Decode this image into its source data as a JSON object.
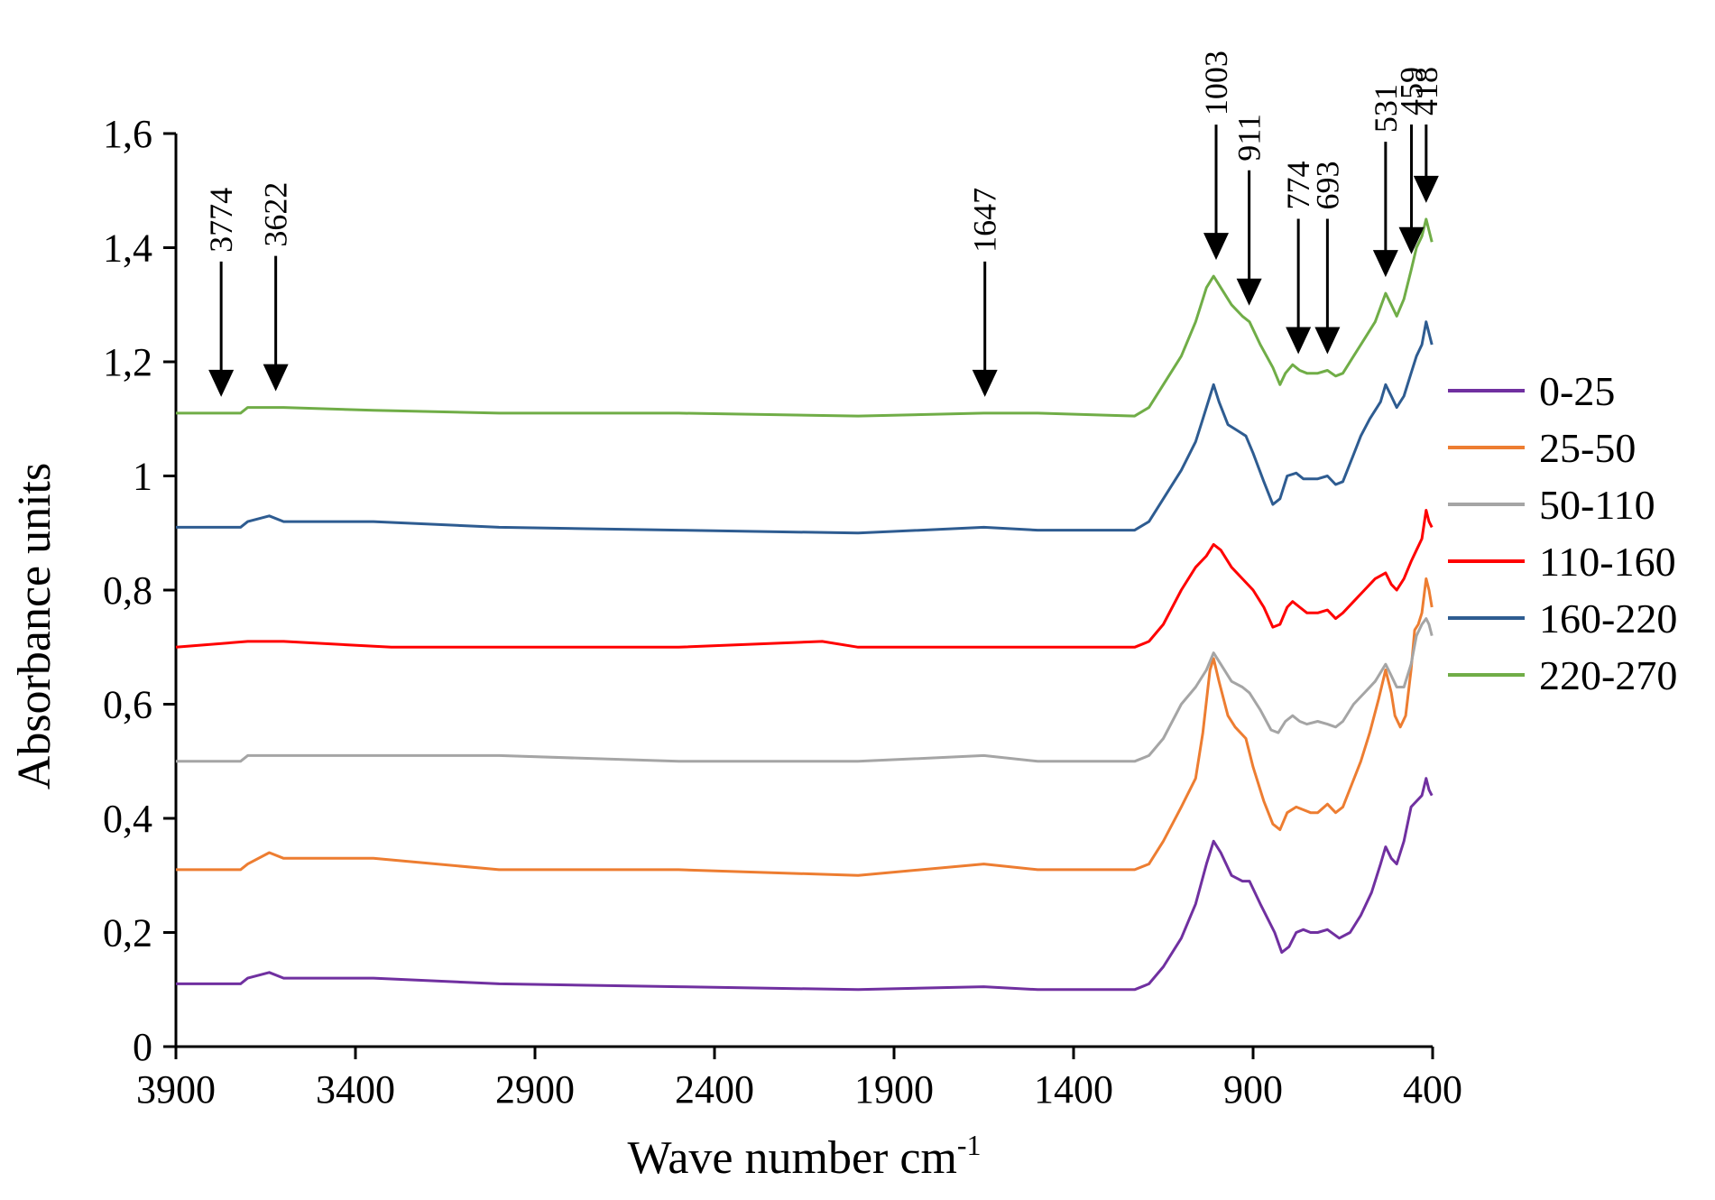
{
  "chart_data": {
    "type": "line",
    "title": "",
    "xlabel": "Wave number cm",
    "xlabel_sup": "-1",
    "ylabel": "Absorbance units",
    "xlim": [
      3900,
      400
    ],
    "ylim": [
      0,
      1.6
    ],
    "x_ticks": [
      3900,
      3400,
      2900,
      2400,
      1900,
      1400,
      900,
      400
    ],
    "x_tick_labels": [
      "3900",
      "3400",
      "2900",
      "2400",
      "1900",
      "1400",
      "900",
      "400"
    ],
    "y_ticks": [
      0,
      0.2,
      0.4,
      0.6,
      0.8,
      1.0,
      1.2,
      1.4,
      1.6
    ],
    "y_tick_labels": [
      "0",
      "0,2",
      "0,4",
      "0,6",
      "0,8",
      "1",
      "1,2",
      "1,4",
      "1,6"
    ],
    "grid": false,
    "legend_position": "right",
    "series": [
      {
        "name": "0-25",
        "color": "#7030A0",
        "points": [
          [
            3900,
            0.11
          ],
          [
            3720,
            0.11
          ],
          [
            3700,
            0.12
          ],
          [
            3640,
            0.13
          ],
          [
            3600,
            0.12
          ],
          [
            3350,
            0.12
          ],
          [
            3000,
            0.11
          ],
          [
            2500,
            0.105
          ],
          [
            2000,
            0.1
          ],
          [
            1650,
            0.105
          ],
          [
            1500,
            0.1
          ],
          [
            1230,
            0.1
          ],
          [
            1190,
            0.11
          ],
          [
            1150,
            0.14
          ],
          [
            1100,
            0.19
          ],
          [
            1060,
            0.25
          ],
          [
            1030,
            0.32
          ],
          [
            1010,
            0.36
          ],
          [
            990,
            0.34
          ],
          [
            960,
            0.3
          ],
          [
            930,
            0.29
          ],
          [
            910,
            0.29
          ],
          [
            880,
            0.25
          ],
          [
            840,
            0.2
          ],
          [
            820,
            0.165
          ],
          [
            800,
            0.175
          ],
          [
            780,
            0.2
          ],
          [
            760,
            0.205
          ],
          [
            740,
            0.2
          ],
          [
            720,
            0.2
          ],
          [
            693,
            0.205
          ],
          [
            660,
            0.19
          ],
          [
            630,
            0.2
          ],
          [
            600,
            0.23
          ],
          [
            570,
            0.27
          ],
          [
            545,
            0.32
          ],
          [
            531,
            0.35
          ],
          [
            515,
            0.33
          ],
          [
            500,
            0.32
          ],
          [
            480,
            0.36
          ],
          [
            460,
            0.42
          ],
          [
            445,
            0.43
          ],
          [
            430,
            0.44
          ],
          [
            418,
            0.47
          ],
          [
            410,
            0.45
          ],
          [
            402,
            0.44
          ]
        ]
      },
      {
        "name": "25-50",
        "color": "#ED7D31",
        "points": [
          [
            3900,
            0.31
          ],
          [
            3720,
            0.31
          ],
          [
            3700,
            0.32
          ],
          [
            3640,
            0.34
          ],
          [
            3600,
            0.33
          ],
          [
            3350,
            0.33
          ],
          [
            3000,
            0.31
          ],
          [
            2500,
            0.31
          ],
          [
            2000,
            0.3
          ],
          [
            1650,
            0.32
          ],
          [
            1500,
            0.31
          ],
          [
            1230,
            0.31
          ],
          [
            1190,
            0.32
          ],
          [
            1150,
            0.36
          ],
          [
            1100,
            0.42
          ],
          [
            1060,
            0.47
          ],
          [
            1040,
            0.55
          ],
          [
            1020,
            0.66
          ],
          [
            1010,
            0.68
          ],
          [
            995,
            0.64
          ],
          [
            970,
            0.58
          ],
          [
            950,
            0.56
          ],
          [
            920,
            0.54
          ],
          [
            900,
            0.49
          ],
          [
            870,
            0.43
          ],
          [
            845,
            0.39
          ],
          [
            825,
            0.38
          ],
          [
            805,
            0.41
          ],
          [
            780,
            0.42
          ],
          [
            760,
            0.415
          ],
          [
            740,
            0.41
          ],
          [
            720,
            0.41
          ],
          [
            693,
            0.425
          ],
          [
            670,
            0.41
          ],
          [
            650,
            0.42
          ],
          [
            625,
            0.46
          ],
          [
            600,
            0.5
          ],
          [
            575,
            0.55
          ],
          [
            550,
            0.61
          ],
          [
            531,
            0.66
          ],
          [
            515,
            0.62
          ],
          [
            505,
            0.58
          ],
          [
            490,
            0.56
          ],
          [
            475,
            0.58
          ],
          [
            460,
            0.66
          ],
          [
            450,
            0.73
          ],
          [
            440,
            0.74
          ],
          [
            430,
            0.76
          ],
          [
            418,
            0.82
          ],
          [
            410,
            0.8
          ],
          [
            402,
            0.77
          ]
        ]
      },
      {
        "name": "50-110",
        "color": "#A5A5A5",
        "points": [
          [
            3900,
            0.5
          ],
          [
            3720,
            0.5
          ],
          [
            3700,
            0.51
          ],
          [
            3640,
            0.51
          ],
          [
            3600,
            0.51
          ],
          [
            3350,
            0.51
          ],
          [
            3000,
            0.51
          ],
          [
            2500,
            0.5
          ],
          [
            2000,
            0.5
          ],
          [
            1650,
            0.51
          ],
          [
            1500,
            0.5
          ],
          [
            1230,
            0.5
          ],
          [
            1190,
            0.51
          ],
          [
            1150,
            0.54
          ],
          [
            1100,
            0.6
          ],
          [
            1060,
            0.63
          ],
          [
            1030,
            0.66
          ],
          [
            1010,
            0.69
          ],
          [
            990,
            0.67
          ],
          [
            960,
            0.64
          ],
          [
            930,
            0.63
          ],
          [
            910,
            0.62
          ],
          [
            880,
            0.59
          ],
          [
            850,
            0.555
          ],
          [
            830,
            0.55
          ],
          [
            810,
            0.57
          ],
          [
            790,
            0.58
          ],
          [
            770,
            0.57
          ],
          [
            750,
            0.565
          ],
          [
            720,
            0.57
          ],
          [
            693,
            0.565
          ],
          [
            670,
            0.56
          ],
          [
            650,
            0.57
          ],
          [
            620,
            0.6
          ],
          [
            590,
            0.62
          ],
          [
            560,
            0.64
          ],
          [
            531,
            0.67
          ],
          [
            515,
            0.65
          ],
          [
            500,
            0.63
          ],
          [
            480,
            0.63
          ],
          [
            460,
            0.67
          ],
          [
            445,
            0.72
          ],
          [
            430,
            0.74
          ],
          [
            418,
            0.75
          ],
          [
            410,
            0.74
          ],
          [
            402,
            0.72
          ]
        ]
      },
      {
        "name": "110-160",
        "color": "#FF0000",
        "points": [
          [
            3900,
            0.7
          ],
          [
            3700,
            0.71
          ],
          [
            3600,
            0.71
          ],
          [
            3300,
            0.7
          ],
          [
            3000,
            0.7
          ],
          [
            2500,
            0.7
          ],
          [
            2100,
            0.71
          ],
          [
            2000,
            0.7
          ],
          [
            1650,
            0.7
          ],
          [
            1500,
            0.7
          ],
          [
            1230,
            0.7
          ],
          [
            1190,
            0.71
          ],
          [
            1150,
            0.74
          ],
          [
            1100,
            0.8
          ],
          [
            1060,
            0.84
          ],
          [
            1030,
            0.86
          ],
          [
            1010,
            0.88
          ],
          [
            990,
            0.87
          ],
          [
            960,
            0.84
          ],
          [
            930,
            0.82
          ],
          [
            900,
            0.8
          ],
          [
            870,
            0.77
          ],
          [
            845,
            0.735
          ],
          [
            825,
            0.74
          ],
          [
            805,
            0.77
          ],
          [
            790,
            0.78
          ],
          [
            770,
            0.77
          ],
          [
            750,
            0.76
          ],
          [
            720,
            0.76
          ],
          [
            693,
            0.765
          ],
          [
            670,
            0.75
          ],
          [
            650,
            0.76
          ],
          [
            620,
            0.78
          ],
          [
            590,
            0.8
          ],
          [
            560,
            0.82
          ],
          [
            531,
            0.83
          ],
          [
            515,
            0.81
          ],
          [
            500,
            0.8
          ],
          [
            480,
            0.82
          ],
          [
            460,
            0.85
          ],
          [
            445,
            0.87
          ],
          [
            430,
            0.89
          ],
          [
            418,
            0.94
          ],
          [
            410,
            0.92
          ],
          [
            402,
            0.91
          ]
        ]
      },
      {
        "name": "160-220",
        "color": "#2E5C91",
        "points": [
          [
            3900,
            0.91
          ],
          [
            3720,
            0.91
          ],
          [
            3700,
            0.92
          ],
          [
            3640,
            0.93
          ],
          [
            3600,
            0.92
          ],
          [
            3350,
            0.92
          ],
          [
            3000,
            0.91
          ],
          [
            2500,
            0.905
          ],
          [
            2000,
            0.9
          ],
          [
            1650,
            0.91
          ],
          [
            1500,
            0.905
          ],
          [
            1230,
            0.905
          ],
          [
            1190,
            0.92
          ],
          [
            1150,
            0.96
          ],
          [
            1100,
            1.01
          ],
          [
            1060,
            1.06
          ],
          [
            1040,
            1.1
          ],
          [
            1020,
            1.14
          ],
          [
            1010,
            1.16
          ],
          [
            995,
            1.13
          ],
          [
            970,
            1.09
          ],
          [
            945,
            1.08
          ],
          [
            920,
            1.07
          ],
          [
            900,
            1.04
          ],
          [
            870,
            0.99
          ],
          [
            845,
            0.95
          ],
          [
            825,
            0.96
          ],
          [
            805,
            1.0
          ],
          [
            780,
            1.005
          ],
          [
            760,
            0.995
          ],
          [
            740,
            0.995
          ],
          [
            720,
            0.995
          ],
          [
            693,
            1.0
          ],
          [
            670,
            0.985
          ],
          [
            650,
            0.99
          ],
          [
            625,
            1.03
          ],
          [
            600,
            1.07
          ],
          [
            575,
            1.1
          ],
          [
            545,
            1.13
          ],
          [
            531,
            1.16
          ],
          [
            515,
            1.14
          ],
          [
            500,
            1.12
          ],
          [
            480,
            1.14
          ],
          [
            460,
            1.18
          ],
          [
            445,
            1.21
          ],
          [
            430,
            1.23
          ],
          [
            418,
            1.27
          ],
          [
            410,
            1.25
          ],
          [
            402,
            1.23
          ]
        ]
      },
      {
        "name": "220-270",
        "color": "#70AD47",
        "points": [
          [
            3900,
            1.11
          ],
          [
            3720,
            1.11
          ],
          [
            3700,
            1.12
          ],
          [
            3640,
            1.12
          ],
          [
            3600,
            1.12
          ],
          [
            3350,
            1.115
          ],
          [
            3000,
            1.11
          ],
          [
            2500,
            1.11
          ],
          [
            2000,
            1.105
          ],
          [
            1650,
            1.11
          ],
          [
            1500,
            1.11
          ],
          [
            1230,
            1.105
          ],
          [
            1190,
            1.12
          ],
          [
            1150,
            1.16
          ],
          [
            1100,
            1.21
          ],
          [
            1060,
            1.27
          ],
          [
            1030,
            1.33
          ],
          [
            1010,
            1.35
          ],
          [
            990,
            1.33
          ],
          [
            960,
            1.3
          ],
          [
            930,
            1.28
          ],
          [
            910,
            1.27
          ],
          [
            880,
            1.23
          ],
          [
            845,
            1.19
          ],
          [
            825,
            1.16
          ],
          [
            810,
            1.18
          ],
          [
            790,
            1.195
          ],
          [
            770,
            1.185
          ],
          [
            750,
            1.18
          ],
          [
            720,
            1.18
          ],
          [
            693,
            1.185
          ],
          [
            670,
            1.175
          ],
          [
            650,
            1.18
          ],
          [
            620,
            1.21
          ],
          [
            590,
            1.24
          ],
          [
            560,
            1.27
          ],
          [
            531,
            1.32
          ],
          [
            515,
            1.3
          ],
          [
            500,
            1.28
          ],
          [
            480,
            1.31
          ],
          [
            460,
            1.36
          ],
          [
            445,
            1.4
          ],
          [
            430,
            1.42
          ],
          [
            418,
            1.45
          ],
          [
            410,
            1.43
          ],
          [
            402,
            1.41
          ]
        ]
      }
    ],
    "annotations": [
      {
        "label": "3774",
        "x": 3774
      },
      {
        "label": "3622",
        "x": 3622
      },
      {
        "label": "1647",
        "x": 1647
      },
      {
        "label": "1003",
        "x": 1003
      },
      {
        "label": "911",
        "x": 911
      },
      {
        "label": "774",
        "x": 774
      },
      {
        "label": "693",
        "x": 693
      },
      {
        "label": "531",
        "x": 531
      },
      {
        "label": "459",
        "x": 459
      },
      {
        "label": "418",
        "x": 418
      }
    ]
  }
}
